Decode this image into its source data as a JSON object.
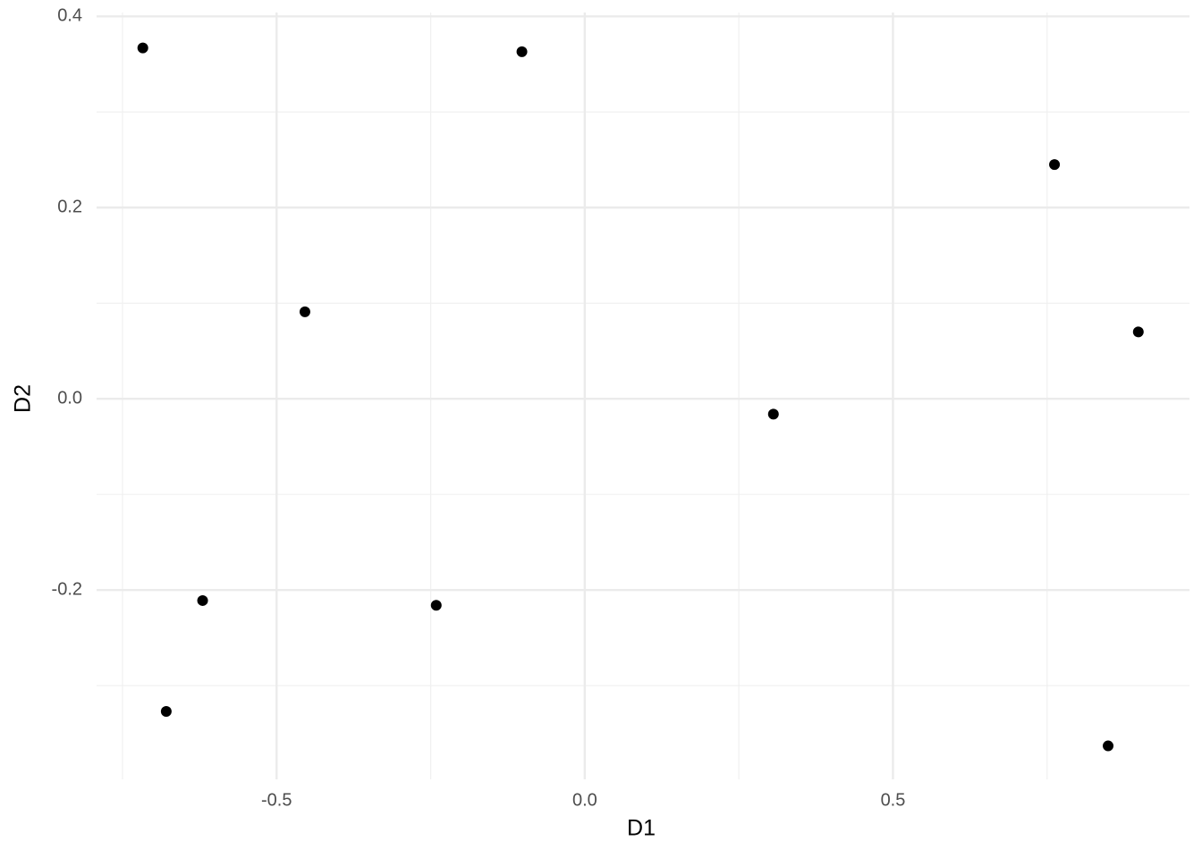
{
  "chart_data": {
    "type": "scatter",
    "x_label": "D1",
    "y_label": "D2",
    "x": [
      -0.717,
      -0.102,
      0.762,
      -0.454,
      0.898,
      0.306,
      -0.62,
      -0.241,
      -0.679,
      0.849
    ],
    "values": [
      0.367,
      0.363,
      0.245,
      0.091,
      0.07,
      -0.016,
      -0.211,
      -0.216,
      -0.327,
      -0.363
    ],
    "color": "#000000",
    "xlim": [
      -0.792,
      0.981
    ],
    "ylim": [
      -0.398,
      0.404
    ],
    "xticks": [
      -0.5,
      {
        "value": 0,
        "label": "0.0"
      },
      0.5
    ],
    "yticks": [
      -0.2,
      {
        "value": 0,
        "label": "0.0"
      },
      0.2,
      0.4
    ],
    "xminor": [
      -0.75,
      -0.25,
      0.25,
      0.75
    ],
    "yminor": [
      -0.3,
      -0.1,
      0.1,
      0.3
    ],
    "grid": true
  }
}
